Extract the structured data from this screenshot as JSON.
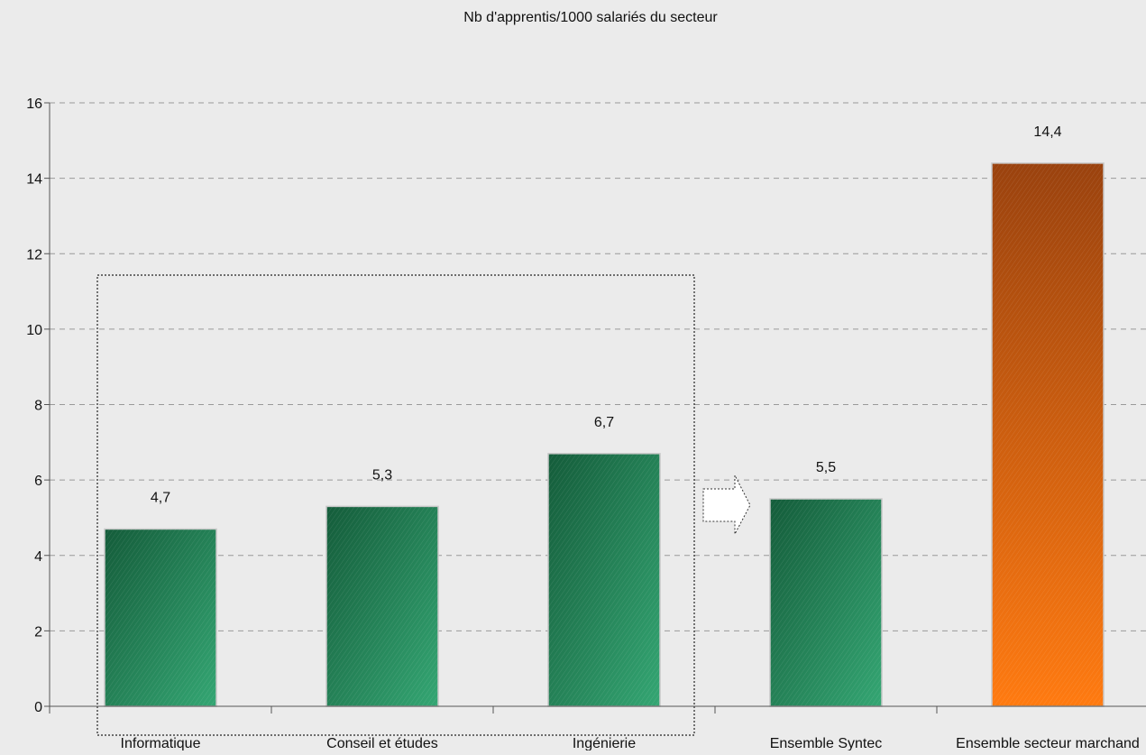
{
  "chart_data": {
    "type": "bar",
    "title": "Nb d'apprentis/1000 salariés du secteur",
    "categories": [
      "Informatique",
      "Conseil et études",
      "Ingénierie",
      "Ensemble Syntec",
      "Ensemble secteur marchand"
    ],
    "values": [
      4.7,
      5.3,
      6.7,
      5.5,
      14.4
    ],
    "data_labels": [
      "4,7",
      "5,3",
      "6,7",
      "5,5",
      "14,4"
    ],
    "bar_colors": [
      "green",
      "green",
      "green",
      "green",
      "orange"
    ],
    "xlabel": "",
    "ylabel": "",
    "ylim": [
      0,
      16
    ],
    "yticks": [
      "0",
      "2",
      "4",
      "6",
      "8",
      "10",
      "12",
      "14",
      "16"
    ],
    "grid": "horizontal dashed",
    "legend": "none",
    "annotations": [
      "dotted box grouping Informatique, Conseil et études, Ingénierie",
      "dotted arrow pointing to Ensemble Syntec"
    ]
  },
  "colors": {
    "background": "#ebebeb",
    "green_dark": "#145c3a",
    "green_light": "#2f9a6a",
    "orange_dark": "#8a3a0a",
    "orange_light": "#ff7a10",
    "grid": "#9a9a9a",
    "axis": "#555555"
  }
}
